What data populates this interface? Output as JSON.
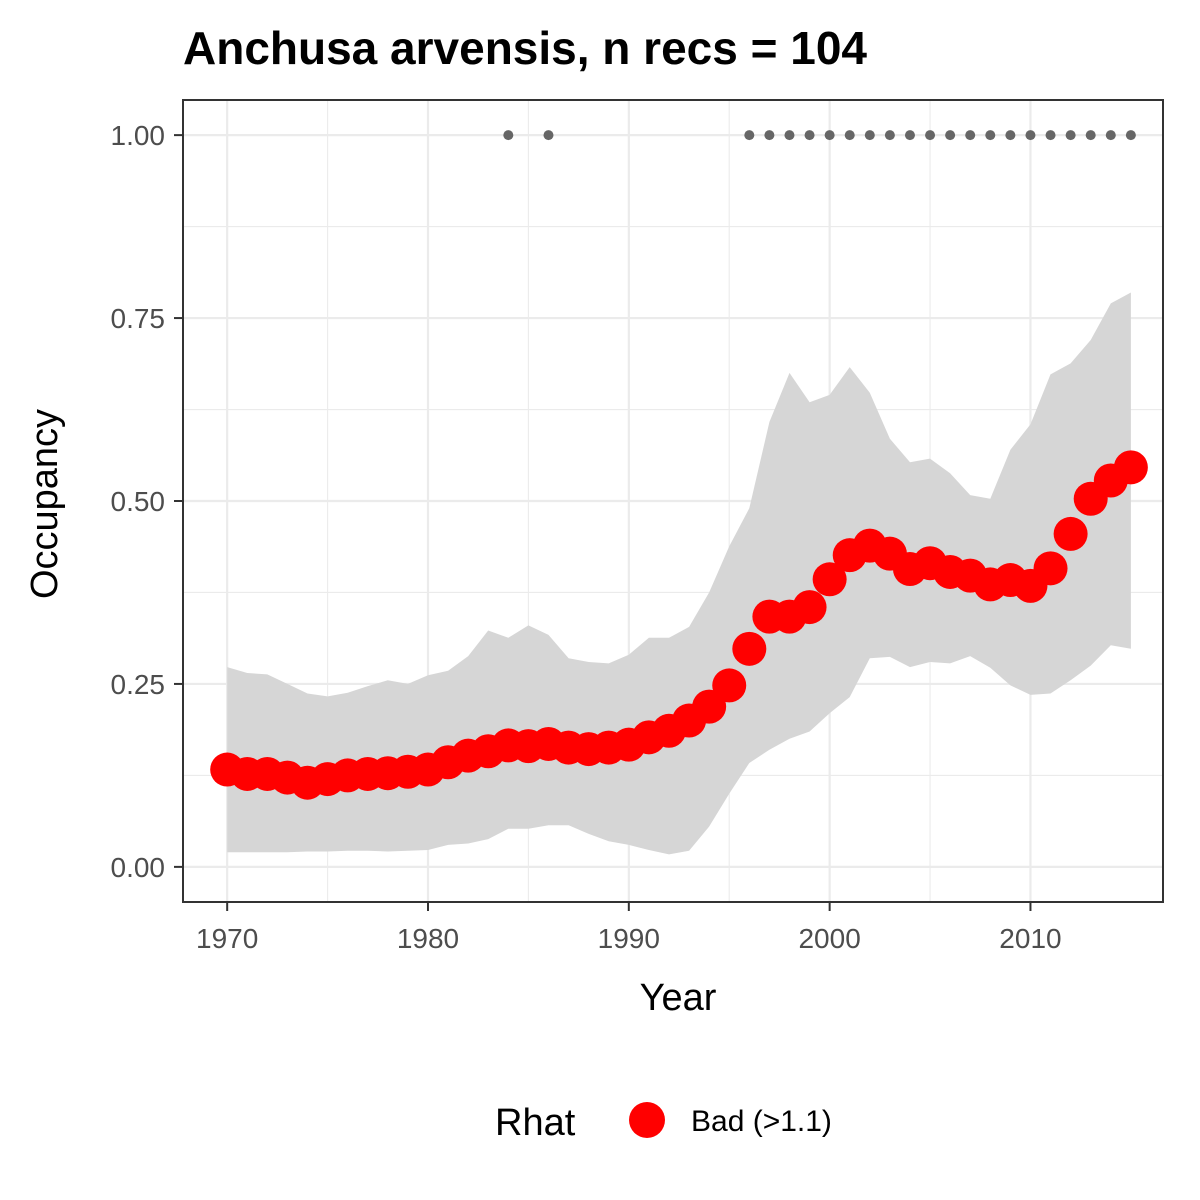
{
  "chart_data": {
    "type": "line",
    "title": "Anchusa arvensis, n recs = 104",
    "xlabel": "Year",
    "ylabel": "Occupancy",
    "xlim": [
      1967.8,
      2016.6
    ],
    "ylim": [
      -0.048,
      1.048
    ],
    "x_ticks": [
      1970,
      1980,
      1990,
      2000,
      2010
    ],
    "x_tick_labels": [
      "1970",
      "1980",
      "1990",
      "2000",
      "2010"
    ],
    "y_ticks": [
      0,
      0.25,
      0.5,
      0.75,
      1.0
    ],
    "y_tick_labels": [
      "0.00",
      "0.25",
      "0.50",
      "0.75",
      "1.00"
    ],
    "grid": true,
    "legend_position": "bottom",
    "legend": {
      "title": "Rhat",
      "entries": [
        {
          "label": "Bad (>1.1)",
          "color": "#ff0000"
        }
      ]
    },
    "colors": {
      "points": "#ff0000",
      "ribbon": "#d6d6d6",
      "record_dots": "#666666",
      "grid": "#ebebeb",
      "panel_border": "#333333"
    },
    "series": [
      {
        "name": "Bad (>1.1)",
        "x": [
          1970,
          1971,
          1972,
          1973,
          1974,
          1975,
          1976,
          1977,
          1978,
          1979,
          1980,
          1981,
          1982,
          1983,
          1984,
          1985,
          1986,
          1987,
          1988,
          1989,
          1990,
          1991,
          1992,
          1993,
          1994,
          1995,
          1996,
          1997,
          1998,
          1999,
          2000,
          2001,
          2002,
          2003,
          2004,
          2005,
          2006,
          2007,
          2008,
          2009,
          2010,
          2011,
          2012,
          2013,
          2014,
          2015
        ],
        "y": [
          0.133,
          0.127,
          0.127,
          0.122,
          0.115,
          0.12,
          0.125,
          0.127,
          0.128,
          0.13,
          0.133,
          0.143,
          0.152,
          0.158,
          0.166,
          0.165,
          0.168,
          0.163,
          0.161,
          0.163,
          0.167,
          0.177,
          0.186,
          0.2,
          0.219,
          0.248,
          0.298,
          0.342,
          0.342,
          0.355,
          0.393,
          0.426,
          0.439,
          0.428,
          0.407,
          0.415,
          0.403,
          0.398,
          0.386,
          0.392,
          0.384,
          0.408,
          0.455,
          0.503,
          0.528,
          0.546
        ]
      }
    ],
    "ribbon": {
      "x": [
        1970,
        1971,
        1972,
        1973,
        1974,
        1975,
        1976,
        1977,
        1978,
        1979,
        1980,
        1981,
        1982,
        1983,
        1984,
        1985,
        1986,
        1987,
        1988,
        1989,
        1990,
        1991,
        1992,
        1993,
        1994,
        1995,
        1996,
        1997,
        1998,
        1999,
        2000,
        2001,
        2002,
        2003,
        2004,
        2005,
        2006,
        2007,
        2008,
        2009,
        2010,
        2011,
        2012,
        2013,
        2014,
        2015
      ],
      "lower": [
        0.02,
        0.02,
        0.02,
        0.02,
        0.021,
        0.021,
        0.022,
        0.022,
        0.021,
        0.022,
        0.023,
        0.03,
        0.032,
        0.038,
        0.052,
        0.052,
        0.057,
        0.057,
        0.045,
        0.035,
        0.03,
        0.023,
        0.017,
        0.022,
        0.055,
        0.1,
        0.142,
        0.16,
        0.175,
        0.185,
        0.21,
        0.232,
        0.285,
        0.287,
        0.273,
        0.28,
        0.278,
        0.288,
        0.272,
        0.248,
        0.235,
        0.237,
        0.255,
        0.275,
        0.303,
        0.298
      ],
      "upper": [
        0.273,
        0.265,
        0.263,
        0.25,
        0.237,
        0.233,
        0.238,
        0.247,
        0.255,
        0.25,
        0.262,
        0.268,
        0.288,
        0.323,
        0.313,
        0.33,
        0.317,
        0.285,
        0.28,
        0.278,
        0.29,
        0.313,
        0.313,
        0.328,
        0.375,
        0.438,
        0.49,
        0.608,
        0.675,
        0.635,
        0.645,
        0.683,
        0.648,
        0.585,
        0.553,
        0.558,
        0.538,
        0.508,
        0.503,
        0.57,
        0.605,
        0.673,
        0.688,
        0.72,
        0.77,
        0.785
      ]
    },
    "record_years": {
      "x": [
        1984,
        1986,
        1996,
        1997,
        1998,
        1999,
        2000,
        2001,
        2002,
        2003,
        2004,
        2005,
        2006,
        2007,
        2008,
        2009,
        2010,
        2011,
        2012,
        2013,
        2014,
        2015
      ],
      "y": 1.0
    }
  }
}
